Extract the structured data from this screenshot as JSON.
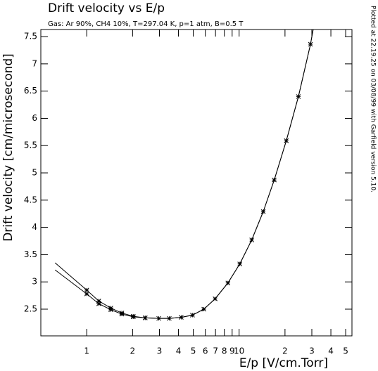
{
  "chart_data": {
    "type": "line",
    "title": "Drift velocity vs E/p",
    "subtitle": "Gas: Ar 90%, CH4 10%, T=297.04 K, p=1 atm, B=0.5 T",
    "x_label": "E/p [V/cm.Torr]",
    "y_label": "Drift velocity [cm/microsecond]",
    "annotation": "Plotted at 22.19.25 on 03/08/99 with Garfield version 5.10.",
    "xscale": "log",
    "xlim": [
      0.5,
      55
    ],
    "ylim": [
      2.01,
      7.63
    ],
    "xticks": [
      1,
      2,
      3,
      4,
      5,
      6,
      7,
      8,
      9,
      10,
      {
        "value": 20,
        "label": "2"
      },
      {
        "value": 30,
        "label": "3"
      },
      {
        "value": 40,
        "label": "4"
      },
      {
        "value": 50,
        "label": "5"
      }
    ],
    "yticks": [
      2.5,
      3,
      3.5,
      4,
      4.5,
      5,
      5.5,
      6,
      6.5,
      7,
      7.5
    ],
    "color": "#000000",
    "series": [
      {
        "style": "line",
        "x": [
          0.62,
          1.0,
          1.2,
          1.44,
          1.7,
          2.02,
          2.42,
          2.97,
          3.48,
          4.17,
          4.94,
          5.87,
          6.96,
          8.44,
          10.1,
          12.1,
          14.4,
          17.0,
          20.4,
          24.5,
          29.4,
          30.6
        ],
        "values": [
          3.35,
          2.85,
          2.65,
          2.52,
          2.43,
          2.37,
          2.34,
          2.33,
          2.33,
          2.35,
          2.39,
          2.5,
          2.69,
          2.98,
          3.33,
          3.77,
          4.29,
          4.87,
          5.59,
          6.4,
          7.36,
          7.63
        ]
      },
      {
        "style": "line",
        "x": [
          0.62,
          1.0,
          1.2,
          1.44,
          1.7,
          2.02,
          2.42,
          2.97,
          3.48,
          4.17,
          4.94,
          5.87,
          6.96,
          8.44,
          10.1,
          12.1,
          14.4,
          17.0,
          20.4,
          24.5,
          29.4,
          30.6
        ],
        "values": [
          3.22,
          2.78,
          2.6,
          2.49,
          2.41,
          2.36,
          2.34,
          2.33,
          2.33,
          2.35,
          2.39,
          2.5,
          2.69,
          2.98,
          3.33,
          3.77,
          4.29,
          4.87,
          5.59,
          6.4,
          7.36,
          7.63
        ]
      },
      {
        "style": "marker",
        "x": [
          1.0,
          1.2,
          1.44,
          1.7,
          2.02,
          2.42,
          2.97,
          3.48,
          4.17,
          4.94,
          5.87,
          6.96,
          8.44,
          10.1,
          12.1,
          14.4,
          17.0,
          20.4,
          24.5,
          29.4
        ],
        "values": [
          2.85,
          2.65,
          2.52,
          2.43,
          2.37,
          2.34,
          2.33,
          2.33,
          2.35,
          2.39,
          2.5,
          2.69,
          2.98,
          3.33,
          3.77,
          4.29,
          4.87,
          5.59,
          6.4,
          7.36
        ]
      },
      {
        "style": "marker",
        "x": [
          1.0,
          1.2,
          1.44,
          1.7,
          2.02,
          2.42
        ],
        "values": [
          2.78,
          2.6,
          2.49,
          2.41,
          2.36,
          2.34
        ]
      }
    ]
  }
}
